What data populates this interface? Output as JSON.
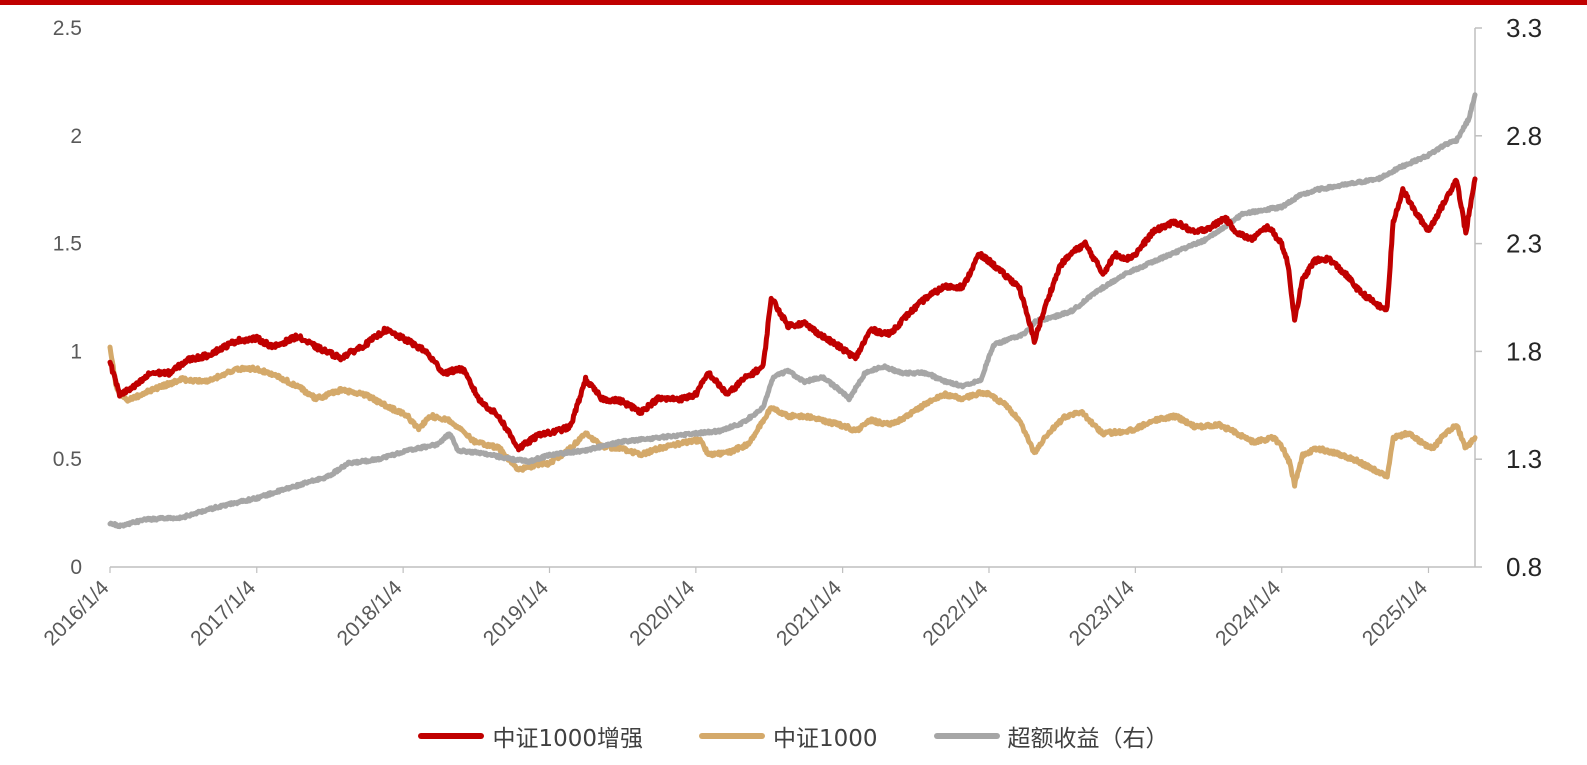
{
  "chart_data": {
    "type": "line",
    "x_tick_labels": [
      "2016/1/4",
      "2017/1/4",
      "2018/1/4",
      "2019/1/4",
      "2020/1/4",
      "2021/1/4",
      "2022/1/4",
      "2023/1/4",
      "2024/1/4",
      "2025/1/4"
    ],
    "x_range": [
      "2016-01-04",
      "2025-04-30"
    ],
    "y_left": {
      "range": [
        0,
        2.5
      ],
      "ticks": [
        "0",
        "0.5",
        "1",
        "1.5",
        "2",
        "2.5"
      ]
    },
    "y_right": {
      "range": [
        0.8,
        3.3
      ],
      "ticks": [
        "0.8",
        "1.3",
        "1.8",
        "2.3",
        "2.8",
        "3.3"
      ]
    },
    "grid": false,
    "legend_position": "bottom",
    "colors": {
      "top_rule": "#c00000",
      "axis": "#bfbfbf"
    },
    "series": [
      {
        "name": "中证1000增强",
        "axis": "left",
        "color": "#c00000",
        "points": [
          [
            "2016-01-04",
            0.95
          ],
          [
            "2016-01-28",
            0.8
          ],
          [
            "2016-03-01",
            0.83
          ],
          [
            "2016-04-15",
            0.9
          ],
          [
            "2016-06-01",
            0.9
          ],
          [
            "2016-07-15",
            0.96
          ],
          [
            "2016-09-01",
            0.98
          ],
          [
            "2016-11-15",
            1.05
          ],
          [
            "2017-01-04",
            1.06
          ],
          [
            "2017-02-15",
            1.02
          ],
          [
            "2017-04-15",
            1.07
          ],
          [
            "2017-06-01",
            1.02
          ],
          [
            "2017-08-01",
            0.97
          ],
          [
            "2017-10-01",
            1.03
          ],
          [
            "2017-11-20",
            1.1
          ],
          [
            "2018-01-15",
            1.05
          ],
          [
            "2018-03-01",
            1.0
          ],
          [
            "2018-04-15",
            0.9
          ],
          [
            "2018-06-01",
            0.92
          ],
          [
            "2018-07-15",
            0.77
          ],
          [
            "2018-08-30",
            0.7
          ],
          [
            "2018-10-19",
            0.55
          ],
          [
            "2018-12-15",
            0.62
          ],
          [
            "2019-01-04",
            0.62
          ],
          [
            "2019-02-25",
            0.65
          ],
          [
            "2019-04-04",
            0.87
          ],
          [
            "2019-05-15",
            0.78
          ],
          [
            "2019-07-01",
            0.77
          ],
          [
            "2019-08-20",
            0.72
          ],
          [
            "2019-10-01",
            0.78
          ],
          [
            "2019-12-01",
            0.78
          ],
          [
            "2020-01-04",
            0.8
          ],
          [
            "2020-02-04",
            0.9
          ],
          [
            "2020-03-23",
            0.8
          ],
          [
            "2020-05-01",
            0.87
          ],
          [
            "2020-06-20",
            0.93
          ],
          [
            "2020-07-10",
            1.25
          ],
          [
            "2020-08-20",
            1.12
          ],
          [
            "2020-10-01",
            1.13
          ],
          [
            "2020-11-15",
            1.07
          ],
          [
            "2020-12-28",
            1.02
          ],
          [
            "2021-02-05",
            0.97
          ],
          [
            "2021-03-15",
            1.1
          ],
          [
            "2021-05-01",
            1.08
          ],
          [
            "2021-06-15",
            1.17
          ],
          [
            "2021-08-01",
            1.25
          ],
          [
            "2021-09-15",
            1.3
          ],
          [
            "2021-11-01",
            1.3
          ],
          [
            "2021-12-10",
            1.45
          ],
          [
            "2022-01-04",
            1.42
          ],
          [
            "2022-02-15",
            1.35
          ],
          [
            "2022-03-20",
            1.3
          ],
          [
            "2022-04-27",
            1.05
          ],
          [
            "2022-06-01",
            1.25
          ],
          [
            "2022-07-01",
            1.4
          ],
          [
            "2022-08-01",
            1.46
          ],
          [
            "2022-09-01",
            1.5
          ],
          [
            "2022-10-15",
            1.36
          ],
          [
            "2022-11-15",
            1.45
          ],
          [
            "2022-12-15",
            1.43
          ],
          [
            "2023-01-04",
            1.45
          ],
          [
            "2023-02-15",
            1.55
          ],
          [
            "2023-03-15",
            1.58
          ],
          [
            "2023-04-15",
            1.6
          ],
          [
            "2023-06-01",
            1.55
          ],
          [
            "2023-07-15",
            1.58
          ],
          [
            "2023-08-15",
            1.62
          ],
          [
            "2023-09-15",
            1.55
          ],
          [
            "2023-10-20",
            1.52
          ],
          [
            "2023-12-01",
            1.58
          ],
          [
            "2024-01-04",
            1.5
          ],
          [
            "2024-01-20",
            1.4
          ],
          [
            "2024-02-05",
            1.15
          ],
          [
            "2024-02-25",
            1.33
          ],
          [
            "2024-03-25",
            1.42
          ],
          [
            "2024-05-01",
            1.43
          ],
          [
            "2024-06-15",
            1.35
          ],
          [
            "2024-07-15",
            1.28
          ],
          [
            "2024-09-10",
            1.2
          ],
          [
            "2024-09-23",
            1.2
          ],
          [
            "2024-10-08",
            1.6
          ],
          [
            "2024-11-01",
            1.75
          ],
          [
            "2024-12-01",
            1.65
          ],
          [
            "2025-01-04",
            1.56
          ],
          [
            "2025-02-15",
            1.7
          ],
          [
            "2025-03-15",
            1.8
          ],
          [
            "2025-04-07",
            1.55
          ],
          [
            "2025-04-30",
            1.8
          ]
        ]
      },
      {
        "name": "中证1000",
        "axis": "left",
        "color": "#d4a96a",
        "points": [
          [
            "2016-01-04",
            1.02
          ],
          [
            "2016-01-20",
            0.83
          ],
          [
            "2016-02-15",
            0.77
          ],
          [
            "2016-04-15",
            0.82
          ],
          [
            "2016-07-01",
            0.87
          ],
          [
            "2016-09-01",
            0.86
          ],
          [
            "2016-11-15",
            0.92
          ],
          [
            "2017-01-04",
            0.92
          ],
          [
            "2017-03-01",
            0.88
          ],
          [
            "2017-04-15",
            0.84
          ],
          [
            "2017-06-01",
            0.78
          ],
          [
            "2017-08-01",
            0.82
          ],
          [
            "2017-10-01",
            0.8
          ],
          [
            "2017-11-20",
            0.75
          ],
          [
            "2018-01-15",
            0.7
          ],
          [
            "2018-02-10",
            0.64
          ],
          [
            "2018-03-15",
            0.7
          ],
          [
            "2018-05-01",
            0.68
          ],
          [
            "2018-07-01",
            0.58
          ],
          [
            "2018-09-01",
            0.55
          ],
          [
            "2018-10-19",
            0.45
          ],
          [
            "2018-12-15",
            0.48
          ],
          [
            "2019-01-04",
            0.48
          ],
          [
            "2019-02-25",
            0.55
          ],
          [
            "2019-04-04",
            0.62
          ],
          [
            "2019-05-15",
            0.56
          ],
          [
            "2019-07-01",
            0.55
          ],
          [
            "2019-08-20",
            0.52
          ],
          [
            "2019-10-01",
            0.55
          ],
          [
            "2019-12-15",
            0.58
          ],
          [
            "2020-01-15",
            0.59
          ],
          [
            "2020-02-04",
            0.52
          ],
          [
            "2020-03-23",
            0.53
          ],
          [
            "2020-05-15",
            0.57
          ],
          [
            "2020-07-10",
            0.74
          ],
          [
            "2020-08-20",
            0.7
          ],
          [
            "2020-10-01",
            0.7
          ],
          [
            "2020-11-15",
            0.68
          ],
          [
            "2021-01-15",
            0.65
          ],
          [
            "2021-02-05",
            0.63
          ],
          [
            "2021-03-15",
            0.68
          ],
          [
            "2021-05-01",
            0.66
          ],
          [
            "2021-06-15",
            0.7
          ],
          [
            "2021-08-01",
            0.76
          ],
          [
            "2021-09-15",
            0.8
          ],
          [
            "2021-11-01",
            0.78
          ],
          [
            "2021-12-15",
            0.81
          ],
          [
            "2022-01-04",
            0.8
          ],
          [
            "2022-02-15",
            0.75
          ],
          [
            "2022-03-20",
            0.68
          ],
          [
            "2022-04-27",
            0.53
          ],
          [
            "2022-06-01",
            0.62
          ],
          [
            "2022-07-15",
            0.7
          ],
          [
            "2022-08-20",
            0.72
          ],
          [
            "2022-10-15",
            0.62
          ],
          [
            "2022-12-15",
            0.63
          ],
          [
            "2023-01-04",
            0.64
          ],
          [
            "2023-02-15",
            0.68
          ],
          [
            "2023-04-15",
            0.7
          ],
          [
            "2023-06-01",
            0.65
          ],
          [
            "2023-08-01",
            0.66
          ],
          [
            "2023-09-15",
            0.62
          ],
          [
            "2023-10-25",
            0.58
          ],
          [
            "2023-12-15",
            0.6
          ],
          [
            "2024-01-04",
            0.56
          ],
          [
            "2024-01-25",
            0.48
          ],
          [
            "2024-02-05",
            0.38
          ],
          [
            "2024-02-25",
            0.52
          ],
          [
            "2024-04-01",
            0.55
          ],
          [
            "2024-05-15",
            0.53
          ],
          [
            "2024-07-01",
            0.5
          ],
          [
            "2024-09-23",
            0.42
          ],
          [
            "2024-10-08",
            0.6
          ],
          [
            "2024-11-15",
            0.62
          ],
          [
            "2024-12-15",
            0.58
          ],
          [
            "2025-01-15",
            0.55
          ],
          [
            "2025-02-15",
            0.62
          ],
          [
            "2025-03-15",
            0.66
          ],
          [
            "2025-04-07",
            0.55
          ],
          [
            "2025-04-30",
            0.6
          ]
        ]
      },
      {
        "name": "超额收益（右）",
        "axis": "right",
        "color": "#a6a6a6",
        "points": [
          [
            "2016-01-04",
            1.0
          ],
          [
            "2016-02-01",
            0.99
          ],
          [
            "2016-04-01",
            1.02
          ],
          [
            "2016-07-01",
            1.03
          ],
          [
            "2016-10-01",
            1.08
          ],
          [
            "2017-01-04",
            1.12
          ],
          [
            "2017-04-01",
            1.17
          ],
          [
            "2017-07-01",
            1.22
          ],
          [
            "2017-08-20",
            1.28
          ],
          [
            "2017-11-01",
            1.3
          ],
          [
            "2018-01-15",
            1.34
          ],
          [
            "2018-04-01",
            1.37
          ],
          [
            "2018-05-01",
            1.42
          ],
          [
            "2018-05-20",
            1.34
          ],
          [
            "2018-07-15",
            1.33
          ],
          [
            "2018-10-01",
            1.3
          ],
          [
            "2018-11-15",
            1.29
          ],
          [
            "2019-01-04",
            1.32
          ],
          [
            "2019-04-01",
            1.34
          ],
          [
            "2019-07-01",
            1.38
          ],
          [
            "2019-10-01",
            1.4
          ],
          [
            "2020-01-04",
            1.42
          ],
          [
            "2020-03-01",
            1.43
          ],
          [
            "2020-05-01",
            1.47
          ],
          [
            "2020-06-20",
            1.54
          ],
          [
            "2020-07-15",
            1.68
          ],
          [
            "2020-08-20",
            1.71
          ],
          [
            "2020-10-01",
            1.66
          ],
          [
            "2020-11-15",
            1.68
          ],
          [
            "2020-12-28",
            1.62
          ],
          [
            "2021-01-20",
            1.58
          ],
          [
            "2021-03-01",
            1.7
          ],
          [
            "2021-04-15",
            1.73
          ],
          [
            "2021-06-01",
            1.7
          ],
          [
            "2021-08-01",
            1.7
          ],
          [
            "2021-09-15",
            1.66
          ],
          [
            "2021-11-01",
            1.64
          ],
          [
            "2021-12-15",
            1.67
          ],
          [
            "2022-01-15",
            1.83
          ],
          [
            "2022-03-01",
            1.86
          ],
          [
            "2022-04-01",
            1.88
          ],
          [
            "2022-05-01",
            1.94
          ],
          [
            "2022-06-15",
            1.96
          ],
          [
            "2022-08-01",
            1.99
          ],
          [
            "2022-10-01",
            2.08
          ],
          [
            "2022-12-01",
            2.15
          ],
          [
            "2023-01-04",
            2.18
          ],
          [
            "2023-04-01",
            2.25
          ],
          [
            "2023-07-01",
            2.32
          ],
          [
            "2023-10-01",
            2.44
          ],
          [
            "2024-01-04",
            2.47
          ],
          [
            "2024-02-15",
            2.52
          ],
          [
            "2024-04-01",
            2.55
          ],
          [
            "2024-06-01",
            2.57
          ],
          [
            "2024-09-01",
            2.6
          ],
          [
            "2024-11-01",
            2.66
          ],
          [
            "2025-01-04",
            2.71
          ],
          [
            "2025-02-15",
            2.76
          ],
          [
            "2025-03-15",
            2.78
          ],
          [
            "2025-04-15",
            2.88
          ],
          [
            "2025-04-30",
            2.99
          ]
        ]
      }
    ]
  }
}
